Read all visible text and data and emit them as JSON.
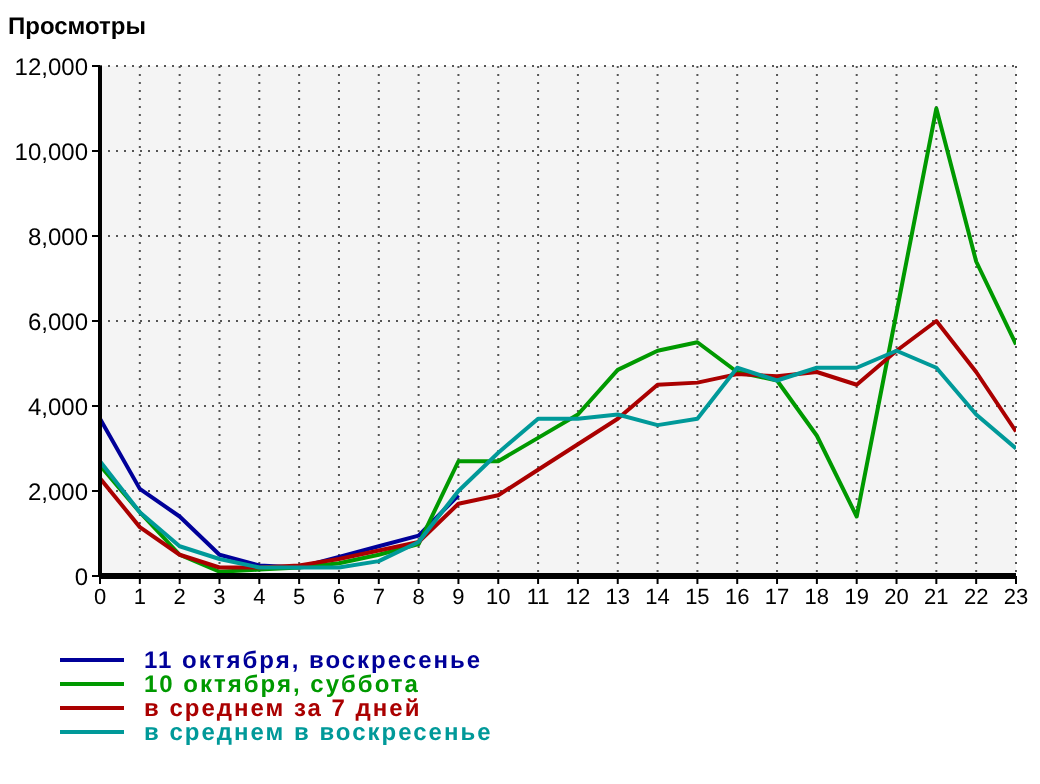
{
  "chart_data": {
    "type": "line",
    "title": "Просмотры",
    "x": [
      0,
      1,
      2,
      3,
      4,
      5,
      6,
      7,
      8,
      9,
      10,
      11,
      12,
      13,
      14,
      15,
      16,
      17,
      18,
      19,
      20,
      21,
      22,
      23
    ],
    "xlim": [
      0,
      23
    ],
    "xticks": [
      0,
      1,
      2,
      3,
      4,
      5,
      6,
      7,
      8,
      9,
      10,
      11,
      12,
      13,
      14,
      15,
      16,
      17,
      18,
      19,
      20,
      21,
      22,
      23
    ],
    "ylim": [
      0,
      12000
    ],
    "yticks": [
      {
        "value": 0,
        "label": "0"
      },
      {
        "value": 2000,
        "label": "2,000"
      },
      {
        "value": 4000,
        "label": "4,000"
      },
      {
        "value": 6000,
        "label": "6,000"
      },
      {
        "value": 8000,
        "label": "8,000"
      },
      {
        "value": 10000,
        "label": "10,000"
      },
      {
        "value": 12000,
        "label": "12,000"
      }
    ],
    "grid": true,
    "legend": "bottom",
    "marker": "none",
    "line_style": "solid",
    "series": [
      {
        "name": "11 октября, воскресенье",
        "color": "#000099",
        "values": [
          3700,
          2050,
          1400,
          500,
          250,
          200,
          450,
          700,
          950,
          1900,
          null,
          null,
          null,
          null,
          null,
          null,
          null,
          null,
          null,
          null,
          null,
          null,
          null,
          null
        ]
      },
      {
        "name": "10 октября, суббота",
        "color": "#009900",
        "values": [
          2600,
          1500,
          500,
          100,
          150,
          200,
          300,
          500,
          750,
          2700,
          2700,
          3250,
          3800,
          4850,
          5300,
          5500,
          4800,
          4600,
          3300,
          1400,
          6200,
          11000,
          7400,
          5450
        ]
      },
      {
        "name": "в среднем за 7 дней",
        "color": "#aa0000",
        "values": [
          2300,
          1150,
          500,
          200,
          200,
          250,
          400,
          600,
          800,
          1700,
          1900,
          2500,
          3100,
          3700,
          4500,
          4550,
          4750,
          4700,
          4800,
          4500,
          5300,
          6000,
          4800,
          3400
        ]
      },
      {
        "name": "в среднем в воскресенье",
        "color": "#009999",
        "values": [
          2700,
          1500,
          700,
          400,
          200,
          200,
          200,
          350,
          800,
          2000,
          2900,
          3700,
          3700,
          3800,
          3550,
          3700,
          4900,
          4600,
          4900,
          4900,
          5300,
          4900,
          3800,
          3000
        ]
      }
    ]
  }
}
